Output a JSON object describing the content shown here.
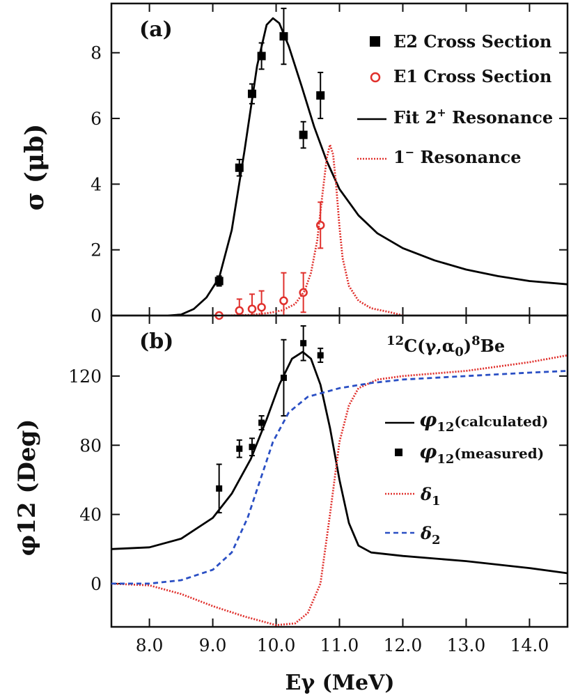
{
  "chart_data": [
    {
      "panel": "(a)",
      "type": "scatter",
      "ylabel": "σ (μb)",
      "xlim": [
        7.4,
        14.6
      ],
      "ylim": [
        0,
        9.5
      ],
      "yticks": [
        0,
        2,
        4,
        6,
        8
      ],
      "legend": {
        "e2": "E2 Cross Section",
        "e1": "E1 Cross Section",
        "fit2": "Fit 2",
        "fit2_sup": "+",
        "fit2_suffix": "Resonance",
        "res1": "1",
        "res1_sup": "−",
        "res1_suffix": "Resonance"
      },
      "series": [
        {
          "name": "E2 Cross Section",
          "kind": "points",
          "color": "#000000",
          "marker": "square",
          "points": [
            {
              "x": 9.1,
              "y": 1.05,
              "err": 0.15
            },
            {
              "x": 9.42,
              "y": 4.5,
              "err": 0.25
            },
            {
              "x": 9.62,
              "y": 6.75,
              "err": 0.3
            },
            {
              "x": 9.77,
              "y": 7.9,
              "err": 0.4
            },
            {
              "x": 10.12,
              "y": 8.5,
              "err": 0.85
            },
            {
              "x": 10.43,
              "y": 5.5,
              "err": 0.4
            },
            {
              "x": 10.7,
              "y": 6.7,
              "err": 0.7
            }
          ]
        },
        {
          "name": "E1 Cross Section",
          "kind": "points",
          "color": "#e0302c",
          "marker": "circle",
          "points": [
            {
              "x": 9.1,
              "y": 0.0,
              "err": 0.05
            },
            {
              "x": 9.42,
              "y": 0.15,
              "err": 0.35
            },
            {
              "x": 9.62,
              "y": 0.2,
              "err": 0.45
            },
            {
              "x": 9.77,
              "y": 0.25,
              "err": 0.5
            },
            {
              "x": 10.12,
              "y": 0.45,
              "err": 0.85
            },
            {
              "x": 10.43,
              "y": 0.7,
              "err": 0.6
            },
            {
              "x": 10.7,
              "y": 2.75,
              "err": 0.7
            }
          ]
        },
        {
          "name": "Fit 2+ Resonance",
          "kind": "line",
          "color": "#000000",
          "dash": "solid",
          "points": [
            [
              8.3,
              0.0
            ],
            [
              8.5,
              0.03
            ],
            [
              8.7,
              0.2
            ],
            [
              8.9,
              0.55
            ],
            [
              9.1,
              1.15
            ],
            [
              9.3,
              2.6
            ],
            [
              9.5,
              5.0
            ],
            [
              9.7,
              7.6
            ],
            [
              9.85,
              8.85
            ],
            [
              9.95,
              9.05
            ],
            [
              10.05,
              8.9
            ],
            [
              10.2,
              8.2
            ],
            [
              10.4,
              7.0
            ],
            [
              10.6,
              5.75
            ],
            [
              10.8,
              4.7
            ],
            [
              11.0,
              3.85
            ],
            [
              11.3,
              3.05
            ],
            [
              11.6,
              2.5
            ],
            [
              12.0,
              2.05
            ],
            [
              12.5,
              1.68
            ],
            [
              13.0,
              1.4
            ],
            [
              13.5,
              1.2
            ],
            [
              14.0,
              1.05
            ],
            [
              14.6,
              0.95
            ]
          ]
        },
        {
          "name": "1− Resonance",
          "kind": "line",
          "color": "#e0302c",
          "dash": "dotted",
          "points": [
            [
              9.2,
              0.0
            ],
            [
              9.6,
              0.02
            ],
            [
              9.9,
              0.08
            ],
            [
              10.1,
              0.16
            ],
            [
              10.3,
              0.35
            ],
            [
              10.45,
              0.75
            ],
            [
              10.55,
              1.3
            ],
            [
              10.65,
              2.3
            ],
            [
              10.72,
              3.5
            ],
            [
              10.8,
              4.8
            ],
            [
              10.85,
              5.2
            ],
            [
              10.9,
              4.9
            ],
            [
              10.95,
              3.9
            ],
            [
              11.0,
              2.7
            ],
            [
              11.05,
              1.75
            ],
            [
              11.15,
              0.9
            ],
            [
              11.3,
              0.45
            ],
            [
              11.5,
              0.22
            ],
            [
              11.8,
              0.1
            ],
            [
              12.0,
              0.0
            ]
          ]
        }
      ]
    },
    {
      "panel": "(b)",
      "type": "line",
      "title": "12C(γ,α0)8Be",
      "title_parts": {
        "mass": "12",
        "body": "C(γ,α",
        "sub": "0",
        "close": ")",
        "mass2": "8",
        "end": "Be"
      },
      "xlabel": "Eγ (MeV)",
      "ylabel": "φ12 (Deg)",
      "xlim": [
        7.4,
        14.6
      ],
      "ylim": [
        -25,
        155
      ],
      "xticks": [
        "8.0",
        "9.0",
        "10.0",
        "11.0",
        "12.0",
        "13.0",
        "14.0"
      ],
      "yticks": [
        0,
        40,
        80,
        120
      ],
      "legend": {
        "calc": "(calculated)",
        "meas": "(measured)",
        "phi": "φ",
        "phi_sub": "12",
        "d1": "δ",
        "d1_sub": "1",
        "d2": "δ",
        "d2_sub": "2"
      },
      "series": [
        {
          "name": "φ12(measured)",
          "kind": "points",
          "color": "#000000",
          "marker": "square",
          "points": [
            {
              "x": 9.1,
              "y": 55,
              "err": 14
            },
            {
              "x": 9.42,
              "y": 78,
              "err": 5
            },
            {
              "x": 9.62,
              "y": 79,
              "err": 5
            },
            {
              "x": 9.77,
              "y": 93,
              "err": 4
            },
            {
              "x": 10.12,
              "y": 119,
              "err": 22
            },
            {
              "x": 10.43,
              "y": 139,
              "err": 10
            },
            {
              "x": 10.7,
              "y": 132,
              "err": 4
            }
          ]
        },
        {
          "name": "φ12(calculated)",
          "kind": "line",
          "color": "#000000",
          "dash": "solid",
          "points": [
            [
              7.4,
              20
            ],
            [
              8.0,
              21
            ],
            [
              8.5,
              26
            ],
            [
              9.0,
              38
            ],
            [
              9.3,
              52
            ],
            [
              9.6,
              72
            ],
            [
              9.85,
              95
            ],
            [
              10.05,
              115
            ],
            [
              10.25,
              130
            ],
            [
              10.42,
              134
            ],
            [
              10.55,
              130
            ],
            [
              10.7,
              115
            ],
            [
              10.85,
              90
            ],
            [
              11.0,
              60
            ],
            [
              11.15,
              35
            ],
            [
              11.3,
              22
            ],
            [
              11.5,
              18
            ],
            [
              12.0,
              16
            ],
            [
              13.0,
              13
            ],
            [
              14.0,
              9
            ],
            [
              14.6,
              6
            ]
          ]
        },
        {
          "name": "δ1",
          "kind": "line",
          "color": "#e0302c",
          "dash": "dotted",
          "points": [
            [
              7.4,
              0
            ],
            [
              8.0,
              -1
            ],
            [
              8.5,
              -6
            ],
            [
              9.0,
              -13
            ],
            [
              9.5,
              -19
            ],
            [
              10.0,
              -24
            ],
            [
              10.3,
              -23
            ],
            [
              10.5,
              -17
            ],
            [
              10.7,
              0
            ],
            [
              10.85,
              40
            ],
            [
              11.0,
              82
            ],
            [
              11.15,
              103
            ],
            [
              11.3,
              113
            ],
            [
              11.6,
              118
            ],
            [
              12.0,
              120
            ],
            [
              13.0,
              123
            ],
            [
              14.0,
              128
            ],
            [
              14.6,
              132
            ]
          ]
        },
        {
          "name": "δ2",
          "kind": "line",
          "color": "#2a4fc4",
          "dash": "dashed",
          "points": [
            [
              7.4,
              0
            ],
            [
              8.0,
              0
            ],
            [
              8.5,
              2
            ],
            [
              9.0,
              8
            ],
            [
              9.3,
              18
            ],
            [
              9.55,
              38
            ],
            [
              9.75,
              60
            ],
            [
              9.95,
              82
            ],
            [
              10.2,
              99
            ],
            [
              10.5,
              108
            ],
            [
              11.0,
              113
            ],
            [
              11.5,
              116
            ],
            [
              12.0,
              118
            ],
            [
              13.0,
              120
            ],
            [
              14.0,
              122
            ],
            [
              14.6,
              123
            ]
          ]
        }
      ]
    }
  ]
}
